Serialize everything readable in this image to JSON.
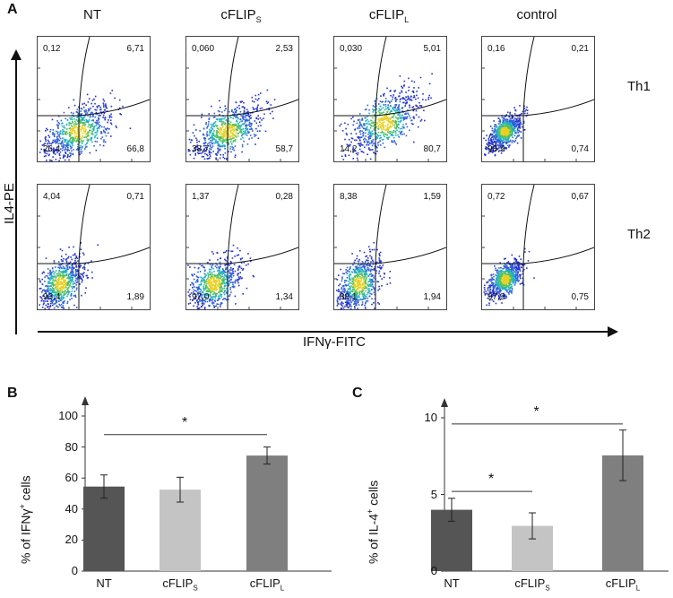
{
  "panel_a": {
    "letter": "A",
    "columns": [
      {
        "main": "NT",
        "sub": ""
      },
      {
        "main": "cFLIP",
        "sub": "S"
      },
      {
        "main": "cFLIP",
        "sub": "L"
      },
      {
        "main": "control",
        "sub": ""
      }
    ],
    "rows": [
      "Th1",
      "Th2"
    ],
    "y_axis": "IL4-PE",
    "x_axis": "IFNγ-FITC",
    "quadrants": [
      [
        {
          "tl": "0,12",
          "tr": "6,71",
          "bl": "26,4",
          "br": "66,8"
        },
        {
          "tl": "0,060",
          "tr": "2,53",
          "bl": "38,7",
          "br": "58,7"
        },
        {
          "tl": "0,030",
          "tr": "5,01",
          "bl": "14,2",
          "br": "80,7"
        },
        {
          "tl": "0,16",
          "tr": "0,21",
          "bl": "98,9",
          "br": "0,74"
        }
      ],
      [
        {
          "tl": "4,04",
          "tr": "0,71",
          "bl": "93,4",
          "br": "1,89"
        },
        {
          "tl": "1,37",
          "tr": "0,28",
          "bl": "97,0",
          "br": "1,34"
        },
        {
          "tl": "8,38",
          "tr": "1,59",
          "bl": "88,1",
          "br": "1,94"
        },
        {
          "tl": "0,72",
          "tr": "0,67",
          "bl": "97,9",
          "br": "0,75"
        }
      ]
    ]
  },
  "chart_data": [
    {
      "type": "bar",
      "panel": "B",
      "categories": [
        {
          "main": "NT",
          "sub": ""
        },
        {
          "main": "cFLIP",
          "sub": "S"
        },
        {
          "main": "cFLIP",
          "sub": "L"
        }
      ],
      "values": [
        54.5,
        52.5,
        74.5
      ],
      "errors": [
        7.5,
        8,
        5.5
      ],
      "ylabel_parts": {
        "pre": "% of IFNγ",
        "sup": "+",
        "post": " cells"
      },
      "ylim": [
        0,
        100
      ],
      "yticks": [
        "0",
        "20",
        "40",
        "60",
        "80",
        "100"
      ],
      "ytick_values": [
        0,
        20,
        40,
        60,
        80,
        100
      ],
      "significance": [
        {
          "from": 0,
          "to": 2,
          "at": 88,
          "label": "*"
        }
      ],
      "colors": [
        "#555555",
        "#c4c4c4",
        "#7f7f7f"
      ]
    },
    {
      "type": "bar",
      "panel": "C",
      "categories": [
        {
          "main": "NT",
          "sub": ""
        },
        {
          "main": "cFLIP",
          "sub": "S"
        },
        {
          "main": "cFLIP",
          "sub": "L"
        }
      ],
      "values": [
        4.0,
        2.95,
        7.55
      ],
      "errors": [
        0.75,
        0.85,
        1.65
      ],
      "ylabel_parts": {
        "pre": "% of IL-4",
        "sup": "+",
        "post": " cells"
      },
      "ylim": [
        0,
        10
      ],
      "yticks": [
        "0",
        "5",
        "10"
      ],
      "ytick_values": [
        0,
        5,
        10
      ],
      "significance": [
        {
          "from": 0,
          "to": 1,
          "at": 5.2,
          "label": "*"
        },
        {
          "from": 0,
          "to": 2,
          "at": 9.6,
          "label": "*"
        }
      ],
      "colors": [
        "#555555",
        "#c4c4c4",
        "#7f7f7f"
      ]
    }
  ]
}
